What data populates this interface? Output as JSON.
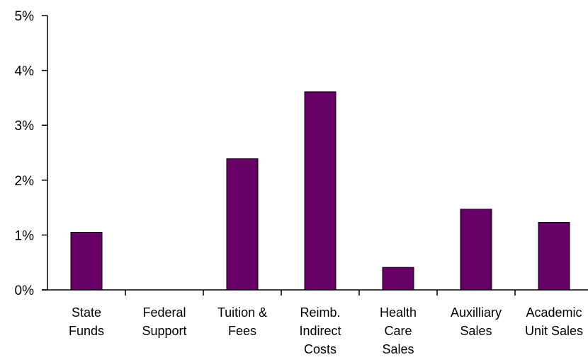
{
  "chart_data": {
    "type": "bar",
    "categories": [
      [
        "State",
        "Funds"
      ],
      [
        "Federal",
        "Support"
      ],
      [
        "Tuition &",
        "Fees"
      ],
      [
        "Reimb.",
        "Indirect",
        "Costs"
      ],
      [
        "Health",
        "Care",
        "Sales"
      ],
      [
        "Auxilliary",
        "Sales"
      ],
      [
        "Academic",
        "Unit Sales"
      ]
    ],
    "values": [
      1.05,
      0,
      2.39,
      3.61,
      0.41,
      1.47,
      1.23
    ],
    "ylim": [
      0,
      5
    ],
    "yticks": [
      "0%",
      "1%",
      "2%",
      "3%",
      "4%",
      "5%"
    ],
    "title": "",
    "xlabel": "",
    "ylabel": "",
    "bar_color": "#660066",
    "grid": false,
    "legend": "none"
  }
}
